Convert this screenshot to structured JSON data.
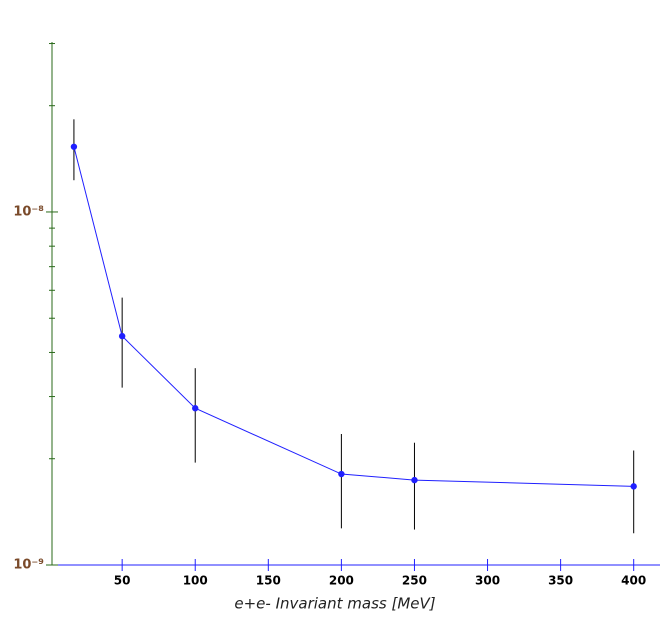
{
  "chart_data": {
    "type": "line",
    "x_label": "e+e- Invariant mass   [MeV]",
    "x": [
      17,
      50,
      100,
      200,
      250,
      400
    ],
    "series": [
      {
        "color": "#2020ff",
        "values": [
          1.53e-08,
          4.45e-09,
          2.78e-09,
          1.81e-09,
          1.74e-09,
          1.67e-09
        ],
        "errors": [
          3e-09,
          1.27e-09,
          8.3e-10,
          5.4e-10,
          4.8e-10,
          4.4e-10
        ]
      }
    ],
    "xlim": [
      2,
      418
    ],
    "xticks": [
      50,
      100,
      150,
      200,
      250,
      300,
      350,
      400
    ],
    "ylim": [
      1e-09,
      3.03e-08
    ],
    "ylog": true,
    "yticks": [
      {
        "value": 1e-09,
        "label": "10⁻⁹"
      },
      {
        "value": 1e-08,
        "label": "10⁻⁸"
      }
    ],
    "yminor_ticks": [
      2e-09,
      3e-09,
      4e-09,
      5e-09,
      6e-09,
      7e-09,
      8e-09,
      9e-09,
      2e-08,
      3e-08
    ],
    "x_axis_color": "#2020ff",
    "y_axis_color": "#2a6a1a",
    "error_color": "#000000"
  }
}
